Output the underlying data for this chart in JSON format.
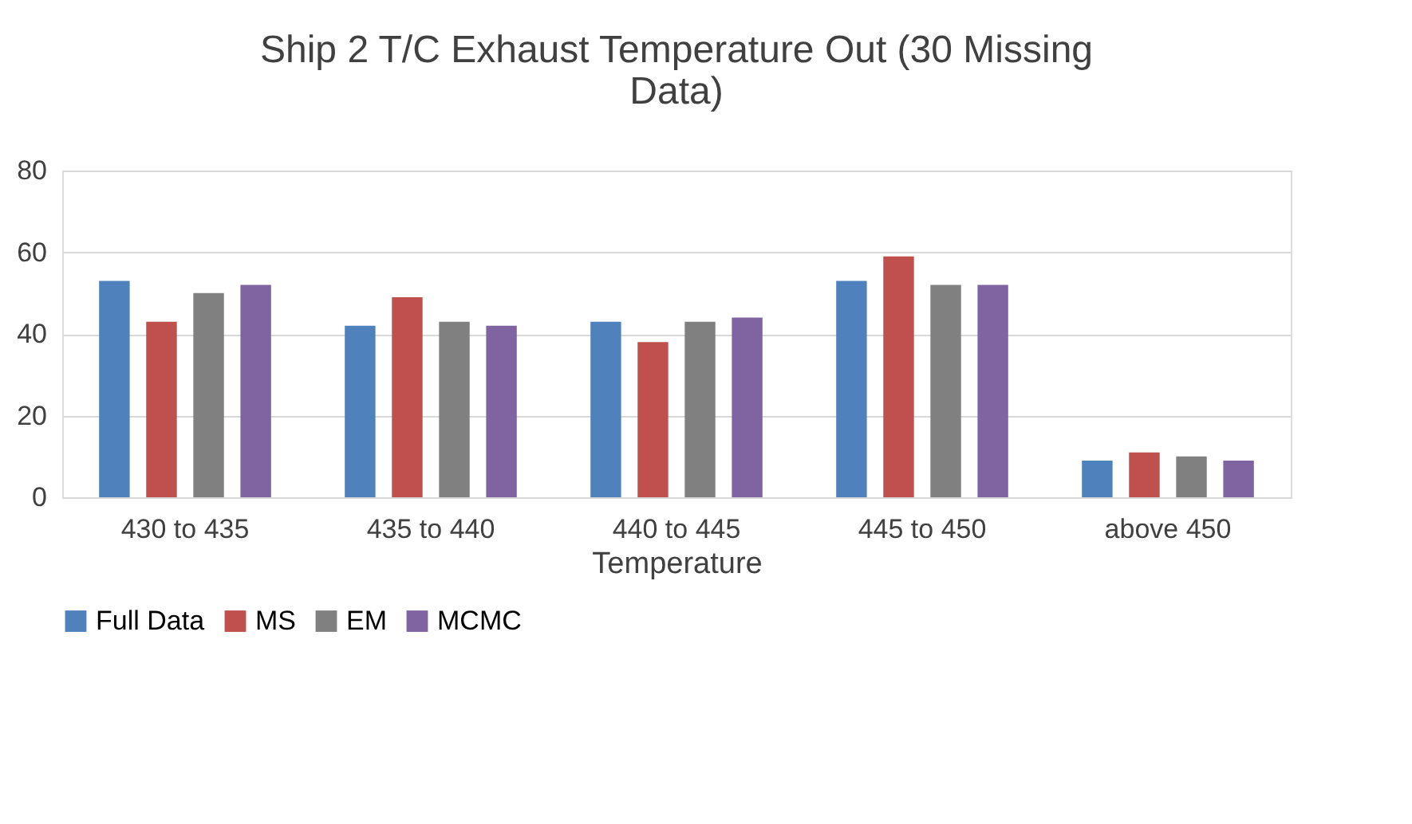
{
  "chart_data": {
    "type": "bar",
    "title": [
      "Ship 2 T/C Exhaust Temperature Out (30 Missing",
      "Data)"
    ],
    "xlabel": "Temperature",
    "categories": [
      "430 to 435",
      "435 to 440",
      "440 to 445",
      "445 to 450",
      "above 450"
    ],
    "series": [
      {
        "name": "Full Data",
        "color": "#4f81bd",
        "values": [
          53,
          42,
          43,
          53,
          9
        ]
      },
      {
        "name": "MS",
        "color": "#c0504d",
        "values": [
          43,
          49,
          38,
          59,
          11
        ]
      },
      {
        "name": "EM",
        "color": "#808080",
        "values": [
          50,
          43,
          43,
          52,
          10
        ]
      },
      {
        "name": "MCMC",
        "color": "#8064a2",
        "values": [
          52,
          42,
          44,
          52,
          9
        ]
      }
    ],
    "ylim": [
      0,
      80
    ],
    "yticks": [
      0,
      20,
      40,
      60,
      80
    ],
    "grid": "y",
    "legend": "bottom"
  }
}
